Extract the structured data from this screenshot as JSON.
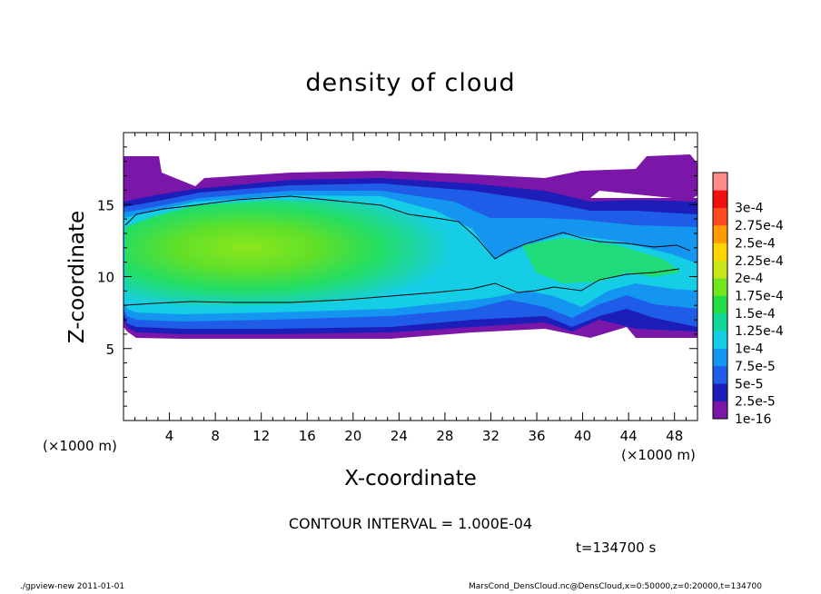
{
  "chart_data": {
    "type": "heatmap",
    "title": "density of cloud",
    "xlabel": "X-coordinate",
    "ylabel": "Z-coordinate",
    "x_unit_left": "(×1000 m)",
    "x_unit_right": "(×1000 m)",
    "xlim": [
      0,
      50
    ],
    "ylim": [
      0,
      20
    ],
    "x_ticks": [
      4,
      8,
      12,
      16,
      20,
      24,
      28,
      32,
      36,
      40,
      44,
      48
    ],
    "y_ticks": [
      5,
      10,
      15
    ],
    "colorbar": {
      "levels": [
        "1e-16",
        "2.5e-5",
        "5e-5",
        "7.5e-5",
        "1e-4",
        "1.25e-4",
        "1.5e-4",
        "1.75e-4",
        "2e-4",
        "2.25e-4",
        "2.5e-4",
        "2.75e-4",
        "3e-4"
      ],
      "colors": [
        "#7b17a8",
        "#1d1dba",
        "#1f5ce8",
        "#1496f0",
        "#16cde6",
        "#12d69a",
        "#22dd44",
        "#70e61e",
        "#c8e61a",
        "#ffd400",
        "#ff9a00",
        "#ff4a20",
        "#f01010",
        "#ff8a8a"
      ]
    },
    "contour_interval": "CONTOUR INTERVAL = 1.000E-04",
    "time": "t=134700 s"
  },
  "footer": {
    "left": "./gpview-new  2011-01-01",
    "right": "MarsCond_DensCloud.nc@DensCloud,x=0:50000,z=0:20000,t=134700"
  }
}
